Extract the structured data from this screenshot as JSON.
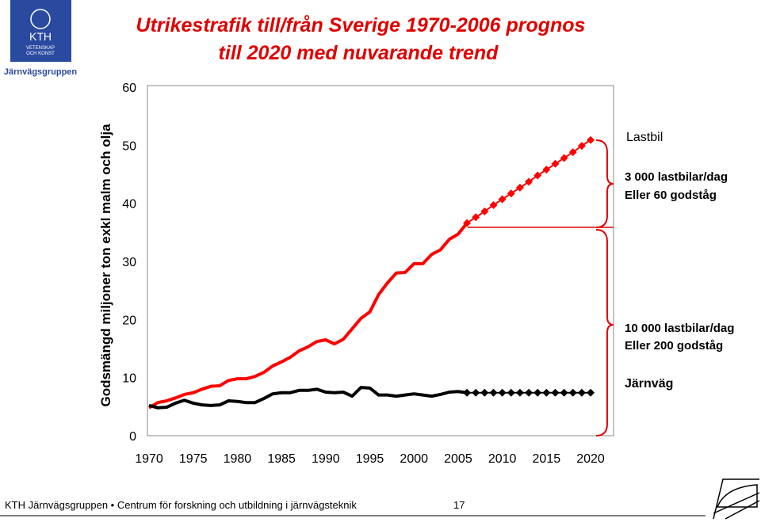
{
  "logo": {
    "lines": [
      "KTH",
      "VETENSKAP",
      "OCH KONST"
    ],
    "caption": "Järnvägsgruppen"
  },
  "chart_data": {
    "type": "line",
    "title": [
      "Utrikestrafik till/från Sverige 1970-2006 prognos",
      "till 2020 med nuvarande trend"
    ],
    "y_label": "Godsmängd miljoner ton exkl malm och olja",
    "x": [
      1970,
      1971,
      1972,
      1973,
      1974,
      1975,
      1976,
      1977,
      1978,
      1979,
      1980,
      1981,
      1982,
      1983,
      1984,
      1985,
      1986,
      1987,
      1988,
      1989,
      1990,
      1991,
      1992,
      1993,
      1994,
      1995,
      1996,
      1997,
      1998,
      1999,
      2000,
      2001,
      2002,
      2003,
      2004,
      2005,
      2006,
      2007,
      2008,
      2009,
      2010,
      2011,
      2012,
      2013,
      2014,
      2015,
      2016,
      2017,
      2018,
      2019,
      2020
    ],
    "xlim": [
      1970,
      2022.6
    ],
    "xticks": [
      1970,
      1975,
      1980,
      1985,
      1990,
      1995,
      2000,
      2005,
      2010,
      2015,
      2020
    ],
    "ylim": [
      0,
      60
    ],
    "yticks": [
      0,
      10,
      20,
      30,
      40,
      50,
      60
    ],
    "series": [
      {
        "name": "Lastbil",
        "color": "#ff0000",
        "values": [
          4.8,
          5.7,
          6.0,
          6.5,
          7.1,
          7.4,
          8.0,
          8.5,
          8.6,
          9.5,
          9.8,
          9.8,
          10.2,
          10.9,
          12.0,
          12.7,
          13.5,
          14.6,
          15.3,
          16.2,
          16.5,
          15.8,
          16.6,
          18.4,
          20.2,
          21.3,
          24.3,
          26.3,
          28.0,
          28.1,
          29.6,
          29.6,
          31.2,
          32.0,
          33.8,
          34.7,
          36.6,
          null,
          null,
          null,
          null,
          null,
          null,
          null,
          null,
          null,
          null,
          null,
          null,
          null,
          null
        ],
        "forecast": [
          null,
          null,
          null,
          null,
          null,
          null,
          null,
          null,
          null,
          null,
          null,
          null,
          null,
          null,
          null,
          null,
          null,
          null,
          null,
          null,
          null,
          null,
          null,
          null,
          null,
          null,
          null,
          null,
          null,
          null,
          null,
          null,
          null,
          null,
          null,
          null,
          36.6,
          37.6,
          38.6,
          39.7,
          40.7,
          41.7,
          42.7,
          43.7,
          44.8,
          45.8,
          46.8,
          47.8,
          48.8,
          49.9,
          50.9
        ]
      },
      {
        "name": "Järnväg",
        "color": "#000000",
        "values": [
          5.2,
          4.8,
          4.9,
          5.6,
          6.1,
          5.6,
          5.3,
          5.2,
          5.3,
          6.0,
          5.9,
          5.7,
          5.7,
          6.4,
          7.2,
          7.4,
          7.4,
          7.8,
          7.8,
          8.0,
          7.5,
          7.4,
          7.5,
          6.8,
          8.3,
          8.2,
          7.0,
          7.0,
          6.8,
          7.0,
          7.2,
          7.0,
          6.8,
          7.1,
          7.5,
          7.6,
          7.4,
          null,
          null,
          null,
          null,
          null,
          null,
          null,
          null,
          null,
          null,
          null,
          null,
          null,
          null
        ],
        "forecast": [
          null,
          null,
          null,
          null,
          null,
          null,
          null,
          null,
          null,
          null,
          null,
          null,
          null,
          null,
          null,
          null,
          null,
          null,
          null,
          null,
          null,
          null,
          null,
          null,
          null,
          null,
          null,
          null,
          null,
          null,
          null,
          null,
          null,
          null,
          null,
          null,
          7.4,
          7.4,
          7.4,
          7.4,
          7.4,
          7.4,
          7.4,
          7.4,
          7.4,
          7.4,
          7.4,
          7.4,
          7.4,
          7.4,
          7.4
        ]
      }
    ],
    "annotations": [
      "3 000 lastbilar/dag",
      "Eller 60 godståg",
      "10 000 lastbilar/dag",
      "Eller 200 godståg"
    ]
  },
  "footer": {
    "text": "KTH Järnvägsgruppen • Centrum för forskning och utbildning i järnvägsteknik",
    "page": "17"
  }
}
